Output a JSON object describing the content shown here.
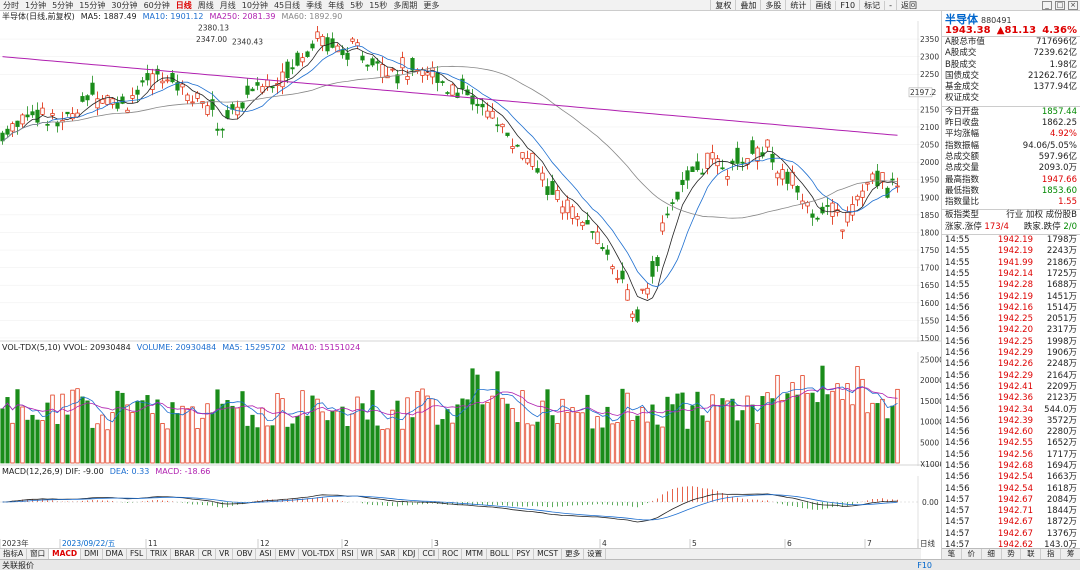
{
  "top_periods": [
    "分时",
    "1分钟",
    "5分钟",
    "15分钟",
    "30分钟",
    "60分钟",
    "日线",
    "周线",
    "月线",
    "10分钟",
    "45日线",
    "季线",
    "年线",
    "5秒",
    "15秒",
    "多周期",
    "更多"
  ],
  "top_active": "日线",
  "top_tools": [
    "复权",
    "叠加",
    "多股",
    "统计",
    "画线",
    "F10",
    "标记",
    "-",
    "返回"
  ],
  "chart_header": {
    "title": "半导体(日线,前复权)",
    "ma5": "MA5: 1887.49",
    "ma10": "MA10: 1901.12",
    "ma250": "MA250: 2081.39",
    "ma60": "MA60: 1892.90"
  },
  "vol_header": {
    "title": "VOL-TDX(5,10) VVOL: 20930484",
    "volume": "VOLUME: 20930484",
    "ma5": "MA5: 15295702",
    "ma10": "MA10: 15151024"
  },
  "macd_header": {
    "title": "MACD(12,26,9) DIF: -9.00",
    "dea": "DEA: 0.33",
    "macd": "MACD: -18.66"
  },
  "annotations": {
    "high1": "2380.13",
    "high2": "2347.00",
    "high3": "2340.43",
    "low": "1483.54",
    "ma250_label": "2197.2"
  },
  "price_ticks": [
    "2350",
    "2300",
    "2250",
    "2150",
    "2100",
    "2050",
    "2000",
    "1950",
    "1900",
    "1850",
    "1800",
    "1750",
    "1700",
    "1650",
    "1600",
    "1550",
    "1500"
  ],
  "vol_ticks": [
    "25000",
    "20000",
    "15000",
    "10000",
    "5000",
    "X1000"
  ],
  "macd_tick": "0.00",
  "date_labels": [
    "2023年",
    "2023/09/22/五",
    "11",
    "12",
    "2",
    "3",
    "4",
    "5",
    "6",
    "7",
    "日线"
  ],
  "bottom_tabs": [
    "指标A",
    "窗口",
    "MACD",
    "DMI",
    "DMA",
    "FSL",
    "TRIX",
    "BRAR",
    "CR",
    "VR",
    "OBV",
    "ASI",
    "EMV",
    "VOL-TDX",
    "RSI",
    "WR",
    "SAR",
    "KDJ",
    "CCI",
    "ROC",
    "MTM",
    "BOLL",
    "PSY",
    "MCST",
    "更多",
    "设置"
  ],
  "bottom_active": "MACD",
  "status": {
    "left": "关联报价",
    "f10": "F10"
  },
  "panel": {
    "name": "半导体",
    "code": "880491",
    "price": "1943.38",
    "change": "▲81.13",
    "pct": "4.36%",
    "stats1": [
      {
        "k": "A股总市值",
        "v": "717696亿"
      },
      {
        "k": "A股成交",
        "v": "7239.62亿"
      },
      {
        "k": "B股成交",
        "v": "1.98亿"
      },
      {
        "k": "国债成交",
        "v": "21262.76亿"
      },
      {
        "k": "基金成交",
        "v": "1377.94亿"
      },
      {
        "k": "权证成交",
        "v": ""
      }
    ],
    "stats2": [
      {
        "k": "今日开盘",
        "v": "1857.44",
        "c": "green"
      },
      {
        "k": "昨日收盘",
        "v": "1862.25",
        "c": ""
      },
      {
        "k": "平均涨幅",
        "v": "4.92%",
        "c": "red"
      },
      {
        "k": "指数振幅",
        "v": "94.06/5.05%",
        "c": ""
      },
      {
        "k": "总成交额",
        "v": "597.96亿",
        "c": ""
      },
      {
        "k": "总成交量",
        "v": "2093.0万",
        "c": ""
      },
      {
        "k": "最高指数",
        "v": "1947.66",
        "c": "red"
      },
      {
        "k": "最低指数",
        "v": "1853.60",
        "c": "green"
      },
      {
        "k": "指数量比",
        "v": "1.55",
        "c": "red"
      }
    ],
    "board_type": "板指类型",
    "board_links": "行业 加权 成份股B",
    "updown_label": "涨家.涨停",
    "updown_val": "173/4",
    "down_label": "跌家.跌停",
    "down_val": "2/0",
    "ticks": [
      {
        "t": "14:55",
        "p": "1942.19",
        "q": "1798万"
      },
      {
        "t": "14:55",
        "p": "1942.19",
        "q": "2243万"
      },
      {
        "t": "14:55",
        "p": "1941.99",
        "q": "2186万"
      },
      {
        "t": "14:55",
        "p": "1942.14",
        "q": "1725万"
      },
      {
        "t": "14:55",
        "p": "1942.28",
        "q": "1688万"
      },
      {
        "t": "14:56",
        "p": "1942.19",
        "q": "1451万"
      },
      {
        "t": "14:56",
        "p": "1942.16",
        "q": "1514万"
      },
      {
        "t": "14:56",
        "p": "1942.25",
        "q": "2051万"
      },
      {
        "t": "14:56",
        "p": "1942.20",
        "q": "2317万"
      },
      {
        "t": "14:56",
        "p": "1942.25",
        "q": "1998万"
      },
      {
        "t": "14:56",
        "p": "1942.29",
        "q": "1906万"
      },
      {
        "t": "14:56",
        "p": "1942.26",
        "q": "2248万"
      },
      {
        "t": "14:56",
        "p": "1942.29",
        "q": "2164万"
      },
      {
        "t": "14:56",
        "p": "1942.41",
        "q": "2209万"
      },
      {
        "t": "14:56",
        "p": "1942.36",
        "q": "2123万"
      },
      {
        "t": "14:56",
        "p": "1942.34",
        "q": "544.0万"
      },
      {
        "t": "14:56",
        "p": "1942.39",
        "q": "3572万"
      },
      {
        "t": "14:56",
        "p": "1942.60",
        "q": "2280万"
      },
      {
        "t": "14:56",
        "p": "1942.55",
        "q": "1652万"
      },
      {
        "t": "14:56",
        "p": "1942.56",
        "q": "1717万"
      },
      {
        "t": "14:56",
        "p": "1942.68",
        "q": "1694万"
      },
      {
        "t": "14:56",
        "p": "1942.54",
        "q": "1663万"
      },
      {
        "t": "14:56",
        "p": "1942.54",
        "q": "1618万"
      },
      {
        "t": "14:57",
        "p": "1942.67",
        "q": "2084万"
      },
      {
        "t": "14:57",
        "p": "1942.71",
        "q": "1844万"
      },
      {
        "t": "14:57",
        "p": "1942.67",
        "q": "1872万"
      },
      {
        "t": "14:57",
        "p": "1942.67",
        "q": "1376万"
      },
      {
        "t": "14:57",
        "p": "1942.62",
        "q": "143.0万"
      },
      {
        "t": "15:00",
        "p": "1942.63",
        "q": "5233万"
      },
      {
        "t": "15:00",
        "p": "1943.38",
        "q": "6.71亿"
      }
    ],
    "bottom_tabs": [
      "笔",
      "价",
      "细",
      "势",
      "联",
      "指",
      "筹"
    ]
  },
  "colors": {
    "up": "#dd2200",
    "down": "#1a8c1a",
    "ma5": "#222222",
    "ma10": "#1e6fd0",
    "ma250": "#b020b0",
    "ma60": "#888888"
  },
  "chart_data": {
    "type": "candlestick",
    "ylim": [
      1483.54,
      2380.13
    ],
    "key_points": [
      {
        "label": "high",
        "value": 2380.13
      },
      {
        "label": "low",
        "value": 1483.54
      },
      {
        "label": "last_close",
        "value": 1943.38
      }
    ]
  }
}
